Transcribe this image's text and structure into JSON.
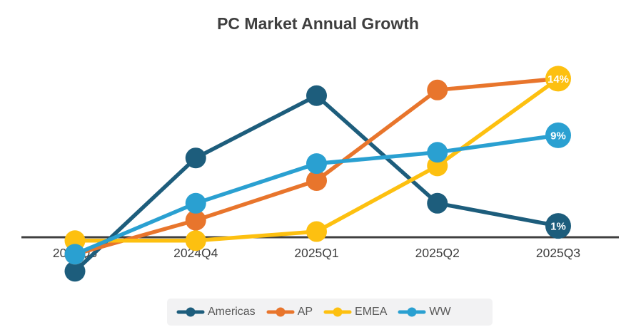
{
  "title": "PC Market Annual Growth",
  "colors": {
    "background": "#ffffff",
    "title_text": "#3f3f3f",
    "axis_line": "#404040",
    "tick_text": "#3f3f3f",
    "legend_text": "#595959",
    "legend_band": "#f2f2f3",
    "point_label_text": "#ffffff"
  },
  "chart_data": {
    "type": "line",
    "title": "PC Market Annual Growth",
    "categories": [
      "2024Q3",
      "2024Q4",
      "2025Q1",
      "2025Q2",
      "2025Q3"
    ],
    "series": [
      {
        "name": "Americas",
        "color": "#1d5d7c",
        "values": [
          -3,
          7,
          12.5,
          3,
          1
        ],
        "end_label": "1%"
      },
      {
        "name": "AP",
        "color": "#e8752c",
        "values": [
          -1.5,
          1.5,
          5,
          13,
          14
        ],
        "end_label": null
      },
      {
        "name": "EMEA",
        "color": "#fdc010",
        "values": [
          -0.3,
          -0.3,
          0.5,
          6.3,
          14
        ],
        "end_label": "14%"
      },
      {
        "name": "WW",
        "color": "#2aa0d1",
        "values": [
          -1.5,
          3,
          6.5,
          7.5,
          9
        ],
        "end_label": "9%"
      }
    ],
    "xlabel": "",
    "ylabel": "",
    "ylim": [
      -4,
      16
    ],
    "grid": false,
    "y_axis_shown": false,
    "zero_line": true,
    "legend_position": "bottom"
  }
}
